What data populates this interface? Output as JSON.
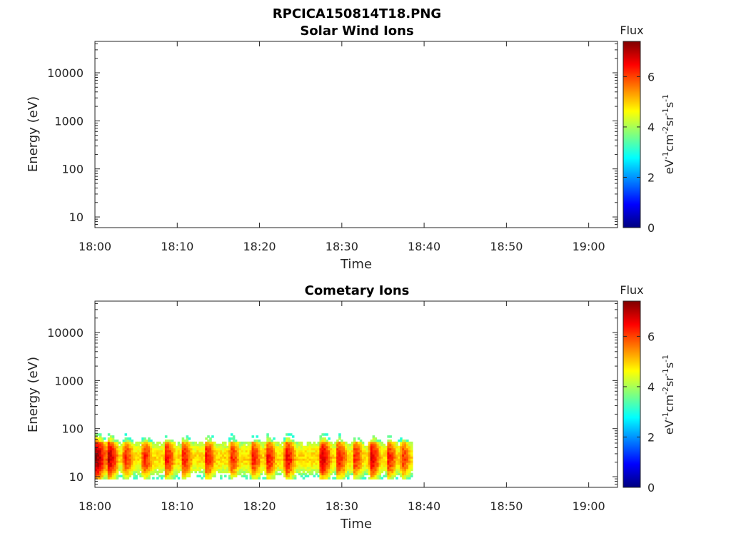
{
  "figure_title": "RPCICA150814T18.PNG",
  "colormap": [
    "#00007f",
    "#0000ff",
    "#007fff",
    "#00ffff",
    "#7fff7f",
    "#ffff00",
    "#ff7f00",
    "#ff0000",
    "#7f0000"
  ],
  "chart_data": [
    {
      "type": "heatmap",
      "title": "Solar Wind Ions",
      "xlabel": "Time",
      "ylabel": "Energy (eV)",
      "x_ticks": [
        "18:00",
        "18:10",
        "18:20",
        "18:30",
        "18:40",
        "18:50",
        "19:00"
      ],
      "x_range_minutes": [
        0,
        63.5
      ],
      "y_scale": "log",
      "y_range": [
        6,
        45000
      ],
      "y_ticks": [
        "10",
        "100",
        "1000",
        "10000"
      ],
      "colorbar": {
        "title": "Flux",
        "unit": "eV-1cm-2sr-1s-1",
        "ticks": [
          "0",
          "2",
          "4",
          "6"
        ],
        "range": [
          0,
          7.4
        ]
      },
      "cells": []
    },
    {
      "type": "heatmap",
      "title": "Cometary Ions",
      "xlabel": "Time",
      "ylabel": "Energy (eV)",
      "x_ticks": [
        "18:00",
        "18:10",
        "18:20",
        "18:30",
        "18:40",
        "18:50",
        "19:00"
      ],
      "x_range_minutes": [
        0,
        63.5
      ],
      "y_scale": "log",
      "y_range": [
        6,
        45000
      ],
      "y_ticks": [
        "10",
        "100",
        "1000",
        "10000"
      ],
      "colorbar": {
        "title": "Flux",
        "unit": "eV-1cm-2sr-1s-1",
        "ticks": [
          "0",
          "2",
          "4",
          "6"
        ],
        "range": [
          0,
          7.4
        ]
      },
      "data_extent": {
        "time_minutes": [
          0,
          38.6
        ],
        "energy_eV": [
          6,
          80
        ]
      },
      "bursts": [
        {
          "t": 0.0,
          "flux": 7.2
        },
        {
          "t": 1.5,
          "flux": 6.9
        },
        {
          "t": 3.5,
          "flux": 6.2
        },
        {
          "t": 5.8,
          "flux": 6.3
        },
        {
          "t": 8.5,
          "flux": 6.4
        },
        {
          "t": 10.6,
          "flux": 6.3
        },
        {
          "t": 13.4,
          "flux": 6.4
        },
        {
          "t": 16.4,
          "flux": 6.2
        },
        {
          "t": 19.0,
          "flux": 6.3
        },
        {
          "t": 20.8,
          "flux": 6.4
        },
        {
          "t": 23.1,
          "flux": 6.6
        },
        {
          "t": 27.4,
          "flux": 6.8
        },
        {
          "t": 29.4,
          "flux": 6.4
        },
        {
          "t": 31.4,
          "flux": 6.2
        },
        {
          "t": 33.4,
          "flux": 6.7
        },
        {
          "t": 35.5,
          "flux": 6.3
        },
        {
          "t": 37.2,
          "flux": 6.1
        }
      ]
    }
  ]
}
